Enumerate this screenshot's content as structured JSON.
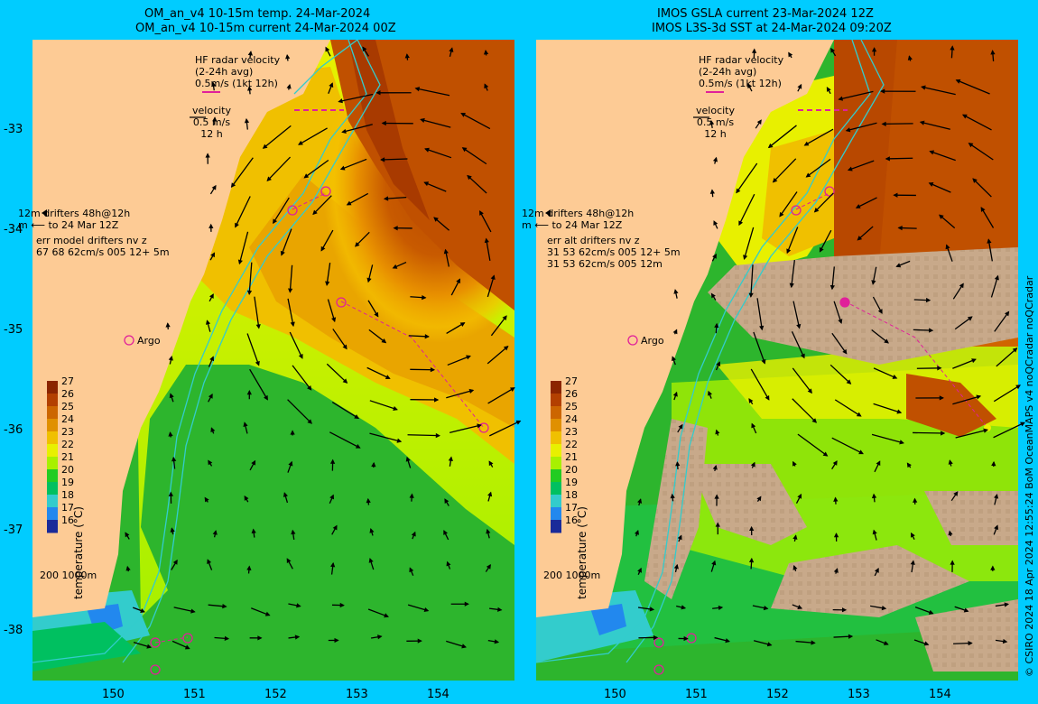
{
  "left": {
    "title1": "OM_an_v4  10-15m temp. 24-Mar-2024",
    "title2": "OM_an_v4  10-15m current 24-Mar-2024 00Z",
    "hf_line1": "HF radar velocity",
    "hf_line2": "(2-24h avg)",
    "hf_line3": "0.5m/s (1kt 12h)",
    "vel_line1": "velocity",
    "vel_line2": "0.5 m/s",
    "vel_line3": "12 h",
    "drift_line1": "12m  drifters 48h@12h",
    "drift_line2": "m  ⟵ to 24 Mar 12Z",
    "err_line1": "err model drifters nv z",
    "err_line2": "67 68 62cm/s 005 12+ 5m",
    "err_line3": "",
    "argo": "Argo",
    "scale": "200  1000m"
  },
  "right": {
    "title1": "IMOS GSLA current 23-Mar-2024 12Z",
    "title2": "IMOS L3S-3d SST at 24-Mar-2024 09:20Z",
    "hf_line1": "HF radar velocity",
    "hf_line2": "(2-24h avg)",
    "hf_line3": "0.5m/s (1kt 12h)",
    "vel_line1": "velocity",
    "vel_line2": "0.5 m/s",
    "vel_line3": "12 h",
    "drift_line1": "12m  drifters 48h@12h",
    "drift_line2": "m  ⟵ to 24 Mar 12Z",
    "err_line1": "err alt drifters nv z",
    "err_line2": "31 53 62cm/s 005 12+ 5m",
    "err_line3": "31 53 62cm/s 005 12m",
    "argo": "Argo",
    "scale": "200  1000m"
  },
  "y_ticks": [
    "-33",
    "-34",
    "-35",
    "-36",
    "-37",
    "-38"
  ],
  "x_ticks": [
    "150",
    "151",
    "152",
    "153",
    "154"
  ],
  "colorbar": {
    "title": "temperature (°C)",
    "labels": [
      "27",
      "26",
      "25",
      "24",
      "23",
      "22",
      "21",
      "20",
      "19",
      "18",
      "17",
      "16"
    ],
    "colors": [
      "#8b2500",
      "#b34000",
      "#cc6600",
      "#e09000",
      "#f0c000",
      "#e8f000",
      "#a8f000",
      "#22cc22",
      "#00c060",
      "#33cccc",
      "#2288ee",
      "#1a2a99"
    ]
  },
  "credit": "© CSIRO 2024  18 Apr 2024 12:55:24 BoM OceanMAPS v4 noQCradar noQCradar",
  "colors": {
    "background": "#00ccff",
    "land": "#fdcb95",
    "coast_contour": "#33cccc",
    "drifter": "#e0209a",
    "cloud": "#c8a98a"
  }
}
